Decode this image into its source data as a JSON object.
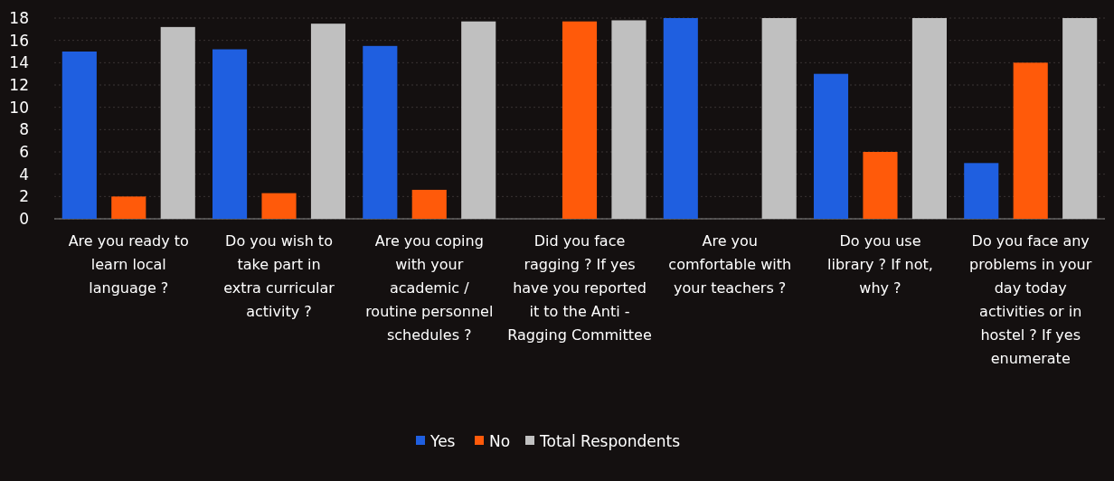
{
  "chart_data": {
    "type": "bar",
    "categories": [
      "Are you ready to learn local language ?",
      "Do you wish to take part in extra curricular activity ?",
      "Are you coping with your academic / routine personnel schedules ?",
      "Did you face ragging ? If yes have you reported it to the Anti - Ragging Committee",
      "Are you comfortable with your teachers ?",
      "Do you use library ? If not, why ?",
      "Do you face any problems in your day today activities or in hostel ? If yes enumerate"
    ],
    "series": [
      {
        "name": "Yes",
        "color": "#1f5fe0",
        "values": [
          15,
          15.2,
          15.5,
          0,
          18,
          13,
          5
        ]
      },
      {
        "name": "No",
        "color": "#ff5a0a",
        "values": [
          2,
          2.3,
          2.6,
          17.7,
          0,
          6,
          14
        ]
      },
      {
        "name": "Total Respondents",
        "color": "#c0c0c0",
        "values": [
          17.2,
          17.5,
          17.7,
          17.8,
          18,
          18,
          18
        ]
      }
    ],
    "ylim": [
      0,
      18
    ],
    "yticks": [
      0,
      2,
      4,
      6,
      8,
      10,
      12,
      14,
      16,
      18
    ],
    "grid": "y",
    "legend": "bottom"
  }
}
